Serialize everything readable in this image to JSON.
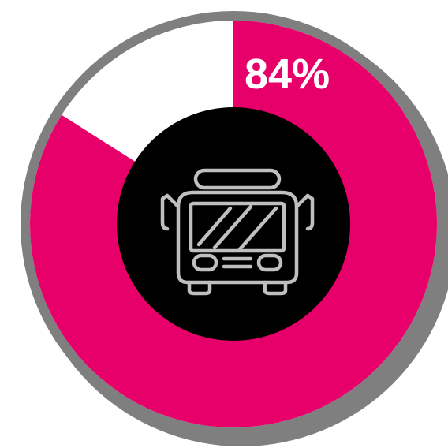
{
  "chart_data": {
    "type": "pie",
    "values": [
      84,
      16
    ],
    "percent_label": "84%",
    "colors": {
      "filled": "#e8006a",
      "remainder": "#ffffff",
      "ring_border": "#7f7f7f",
      "shadow": "#7f7f7f",
      "center": "#000000",
      "icon": "#bfbfbf",
      "label_text": "#ffffff"
    }
  },
  "center_icon": "bus-icon"
}
